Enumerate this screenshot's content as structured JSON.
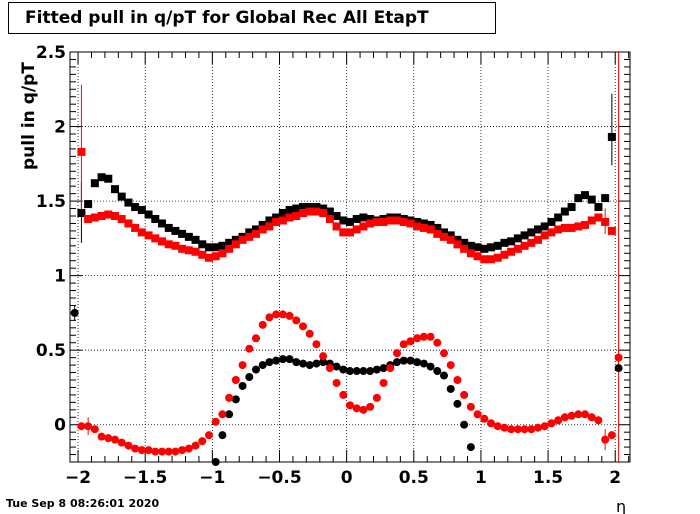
{
  "timestamp": "Tue Sep  8 08:26:01 2020",
  "chart_data": {
    "type": "scatter",
    "title": "Fitted pull in q/pT for Global Rec All EtapT",
    "xlabel": "η",
    "ylabel": "pull in q/pT",
    "xlim": [
      -2.06,
      2.11
    ],
    "ylim": [
      -0.25,
      2.5
    ],
    "grid": true,
    "x_ticks": [
      -2,
      -1.5,
      -1,
      -0.5,
      0,
      0.5,
      1,
      1.5,
      2
    ],
    "x_tick_labels": [
      "−2",
      "−1.5",
      "−1",
      "−0.5",
      "0",
      "0.5",
      "1",
      "1.5",
      "2"
    ],
    "y_ticks": [
      0,
      0.5,
      1,
      1.5,
      2,
      2.5
    ],
    "y_tick_labels": [
      "0",
      "0.5",
      "1",
      "1.5",
      "2",
      "2.5"
    ],
    "colors": {
      "black_series": "#000000",
      "red_series": "#ff0000"
    },
    "series": [
      {
        "marker": "square",
        "color": "#000000",
        "points": [
          [
            -1.975,
            1.42
          ],
          [
            -1.925,
            1.48
          ],
          [
            -1.875,
            1.62
          ],
          [
            -1.825,
            1.66
          ],
          [
            -1.775,
            1.65
          ],
          [
            -1.725,
            1.58
          ],
          [
            -1.675,
            1.53
          ],
          [
            -1.625,
            1.49
          ],
          [
            -1.575,
            1.46
          ],
          [
            -1.525,
            1.44
          ],
          [
            -1.475,
            1.41
          ],
          [
            -1.425,
            1.38
          ],
          [
            -1.375,
            1.35
          ],
          [
            -1.325,
            1.32
          ],
          [
            -1.275,
            1.3
          ],
          [
            -1.225,
            1.28
          ],
          [
            -1.175,
            1.26
          ],
          [
            -1.125,
            1.24
          ],
          [
            -1.075,
            1.21
          ],
          [
            -1.025,
            1.19
          ],
          [
            -0.975,
            1.19
          ],
          [
            -0.925,
            1.2
          ],
          [
            -0.875,
            1.22
          ],
          [
            -0.825,
            1.24
          ],
          [
            -0.775,
            1.26
          ],
          [
            -0.725,
            1.29
          ],
          [
            -0.675,
            1.31
          ],
          [
            -0.625,
            1.34
          ],
          [
            -0.575,
            1.37
          ],
          [
            -0.525,
            1.39
          ],
          [
            -0.475,
            1.42
          ],
          [
            -0.425,
            1.44
          ],
          [
            -0.375,
            1.45
          ],
          [
            -0.325,
            1.46
          ],
          [
            -0.275,
            1.46
          ],
          [
            -0.225,
            1.46
          ],
          [
            -0.175,
            1.45
          ],
          [
            -0.125,
            1.43
          ],
          [
            -0.075,
            1.4
          ],
          [
            -0.025,
            1.37
          ],
          [
            0.025,
            1.36
          ],
          [
            0.075,
            1.38
          ],
          [
            0.125,
            1.39
          ],
          [
            0.175,
            1.38
          ],
          [
            0.225,
            1.37
          ],
          [
            0.275,
            1.38
          ],
          [
            0.325,
            1.39
          ],
          [
            0.375,
            1.39
          ],
          [
            0.425,
            1.38
          ],
          [
            0.475,
            1.37
          ],
          [
            0.525,
            1.36
          ],
          [
            0.575,
            1.35
          ],
          [
            0.625,
            1.34
          ],
          [
            0.675,
            1.32
          ],
          [
            0.725,
            1.29
          ],
          [
            0.775,
            1.27
          ],
          [
            0.825,
            1.24
          ],
          [
            0.875,
            1.22
          ],
          [
            0.925,
            1.2
          ],
          [
            0.975,
            1.19
          ],
          [
            1.025,
            1.18
          ],
          [
            1.075,
            1.19
          ],
          [
            1.125,
            1.2
          ],
          [
            1.175,
            1.22
          ],
          [
            1.225,
            1.23
          ],
          [
            1.275,
            1.25
          ],
          [
            1.325,
            1.27
          ],
          [
            1.375,
            1.29
          ],
          [
            1.425,
            1.31
          ],
          [
            1.475,
            1.33
          ],
          [
            1.525,
            1.36
          ],
          [
            1.575,
            1.39
          ],
          [
            1.625,
            1.43
          ],
          [
            1.675,
            1.46
          ],
          [
            1.725,
            1.52
          ],
          [
            1.775,
            1.54
          ],
          [
            1.825,
            1.51
          ],
          [
            1.875,
            1.46
          ],
          [
            1.925,
            1.52
          ],
          [
            1.975,
            1.93
          ]
        ]
      },
      {
        "marker": "square",
        "color": "#ff0000",
        "points": [
          [
            -1.975,
            1.83
          ],
          [
            -1.925,
            1.38
          ],
          [
            -1.875,
            1.39
          ],
          [
            -1.825,
            1.4
          ],
          [
            -1.775,
            1.41
          ],
          [
            -1.725,
            1.4
          ],
          [
            -1.675,
            1.38
          ],
          [
            -1.625,
            1.35
          ],
          [
            -1.575,
            1.32
          ],
          [
            -1.525,
            1.29
          ],
          [
            -1.475,
            1.27
          ],
          [
            -1.425,
            1.25
          ],
          [
            -1.375,
            1.23
          ],
          [
            -1.325,
            1.21
          ],
          [
            -1.275,
            1.2
          ],
          [
            -1.225,
            1.18
          ],
          [
            -1.175,
            1.17
          ],
          [
            -1.125,
            1.16
          ],
          [
            -1.075,
            1.14
          ],
          [
            -1.025,
            1.12
          ],
          [
            -0.975,
            1.13
          ],
          [
            -0.925,
            1.15
          ],
          [
            -0.875,
            1.18
          ],
          [
            -0.825,
            1.21
          ],
          [
            -0.775,
            1.24
          ],
          [
            -0.725,
            1.26
          ],
          [
            -0.675,
            1.28
          ],
          [
            -0.625,
            1.31
          ],
          [
            -0.575,
            1.33
          ],
          [
            -0.525,
            1.36
          ],
          [
            -0.475,
            1.37
          ],
          [
            -0.425,
            1.39
          ],
          [
            -0.375,
            1.4
          ],
          [
            -0.325,
            1.42
          ],
          [
            -0.275,
            1.43
          ],
          [
            -0.225,
            1.43
          ],
          [
            -0.175,
            1.42
          ],
          [
            -0.125,
            1.38
          ],
          [
            -0.075,
            1.33
          ],
          [
            -0.025,
            1.29
          ],
          [
            0.025,
            1.29
          ],
          [
            0.075,
            1.31
          ],
          [
            0.125,
            1.33
          ],
          [
            0.175,
            1.35
          ],
          [
            0.225,
            1.36
          ],
          [
            0.275,
            1.36
          ],
          [
            0.325,
            1.37
          ],
          [
            0.375,
            1.37
          ],
          [
            0.425,
            1.36
          ],
          [
            0.475,
            1.35
          ],
          [
            0.525,
            1.33
          ],
          [
            0.575,
            1.32
          ],
          [
            0.625,
            1.31
          ],
          [
            0.675,
            1.28
          ],
          [
            0.725,
            1.26
          ],
          [
            0.775,
            1.24
          ],
          [
            0.825,
            1.21
          ],
          [
            0.875,
            1.18
          ],
          [
            0.925,
            1.15
          ],
          [
            0.975,
            1.13
          ],
          [
            1.025,
            1.11
          ],
          [
            1.075,
            1.11
          ],
          [
            1.125,
            1.12
          ],
          [
            1.175,
            1.14
          ],
          [
            1.225,
            1.16
          ],
          [
            1.275,
            1.18
          ],
          [
            1.325,
            1.2
          ],
          [
            1.375,
            1.22
          ],
          [
            1.425,
            1.24
          ],
          [
            1.475,
            1.27
          ],
          [
            1.525,
            1.29
          ],
          [
            1.575,
            1.31
          ],
          [
            1.625,
            1.32
          ],
          [
            1.675,
            1.32
          ],
          [
            1.725,
            1.33
          ],
          [
            1.775,
            1.34
          ],
          [
            1.825,
            1.37
          ],
          [
            1.875,
            1.39
          ],
          [
            1.925,
            1.36
          ],
          [
            1.975,
            1.3
          ]
        ]
      },
      {
        "marker": "circle",
        "color": "#000000",
        "points": [
          [
            -2.025,
            0.75
          ],
          [
            -0.975,
            -0.25
          ],
          [
            -0.925,
            -0.07
          ],
          [
            -0.875,
            0.07
          ],
          [
            -0.825,
            0.17
          ],
          [
            -0.775,
            0.26
          ],
          [
            -0.725,
            0.32
          ],
          [
            -0.675,
            0.37
          ],
          [
            -0.625,
            0.4
          ],
          [
            -0.575,
            0.42
          ],
          [
            -0.525,
            0.43
          ],
          [
            -0.475,
            0.44
          ],
          [
            -0.425,
            0.44
          ],
          [
            -0.375,
            0.42
          ],
          [
            -0.325,
            0.41
          ],
          [
            -0.275,
            0.4
          ],
          [
            -0.225,
            0.41
          ],
          [
            -0.175,
            0.42
          ],
          [
            -0.125,
            0.41
          ],
          [
            -0.075,
            0.39
          ],
          [
            -0.025,
            0.37
          ],
          [
            0.025,
            0.36
          ],
          [
            0.075,
            0.36
          ],
          [
            0.125,
            0.36
          ],
          [
            0.175,
            0.36
          ],
          [
            0.225,
            0.37
          ],
          [
            0.275,
            0.38
          ],
          [
            0.325,
            0.4
          ],
          [
            0.375,
            0.42
          ],
          [
            0.425,
            0.43
          ],
          [
            0.475,
            0.43
          ],
          [
            0.525,
            0.42
          ],
          [
            0.575,
            0.41
          ],
          [
            0.625,
            0.39
          ],
          [
            0.675,
            0.36
          ],
          [
            0.725,
            0.33
          ],
          [
            0.775,
            0.24
          ],
          [
            0.825,
            0.14
          ],
          [
            0.875,
            0.0
          ],
          [
            0.925,
            -0.15
          ],
          [
            2.025,
            0.38
          ]
        ]
      },
      {
        "marker": "circle",
        "color": "#ff0000",
        "points": [
          [
            -1.975,
            -0.01
          ],
          [
            -1.925,
            -0.01
          ],
          [
            -1.875,
            -0.03
          ],
          [
            -1.825,
            -0.08
          ],
          [
            -1.775,
            -0.09
          ],
          [
            -1.725,
            -0.1
          ],
          [
            -1.675,
            -0.12
          ],
          [
            -1.625,
            -0.14
          ],
          [
            -1.575,
            -0.16
          ],
          [
            -1.525,
            -0.17
          ],
          [
            -1.475,
            -0.17
          ],
          [
            -1.425,
            -0.18
          ],
          [
            -1.375,
            -0.18
          ],
          [
            -1.325,
            -0.18
          ],
          [
            -1.275,
            -0.18
          ],
          [
            -1.225,
            -0.17
          ],
          [
            -1.175,
            -0.16
          ],
          [
            -1.125,
            -0.14
          ],
          [
            -1.075,
            -0.11
          ],
          [
            -1.025,
            -0.07
          ],
          [
            -0.975,
            0.02
          ],
          [
            -0.925,
            0.07
          ],
          [
            -0.875,
            0.18
          ],
          [
            -0.825,
            0.3
          ],
          [
            -0.775,
            0.4
          ],
          [
            -0.725,
            0.51
          ],
          [
            -0.675,
            0.58
          ],
          [
            -0.625,
            0.67
          ],
          [
            -0.575,
            0.72
          ],
          [
            -0.525,
            0.74
          ],
          [
            -0.475,
            0.74
          ],
          [
            -0.425,
            0.73
          ],
          [
            -0.375,
            0.7
          ],
          [
            -0.325,
            0.66
          ],
          [
            -0.275,
            0.61
          ],
          [
            -0.225,
            0.54
          ],
          [
            -0.175,
            0.46
          ],
          [
            -0.125,
            0.38
          ],
          [
            -0.075,
            0.28
          ],
          [
            -0.025,
            0.2
          ],
          [
            0.025,
            0.13
          ],
          [
            0.075,
            0.11
          ],
          [
            0.125,
            0.1
          ],
          [
            0.175,
            0.12
          ],
          [
            0.225,
            0.18
          ],
          [
            0.275,
            0.28
          ],
          [
            0.325,
            0.38
          ],
          [
            0.375,
            0.48
          ],
          [
            0.425,
            0.54
          ],
          [
            0.475,
            0.56
          ],
          [
            0.525,
            0.58
          ],
          [
            0.575,
            0.59
          ],
          [
            0.625,
            0.59
          ],
          [
            0.675,
            0.55
          ],
          [
            0.725,
            0.48
          ],
          [
            0.775,
            0.4
          ],
          [
            0.825,
            0.3
          ],
          [
            0.875,
            0.2
          ],
          [
            0.925,
            0.12
          ],
          [
            0.975,
            0.07
          ],
          [
            1.025,
            0.04
          ],
          [
            1.075,
            0.01
          ],
          [
            1.125,
            -0.01
          ],
          [
            1.175,
            -0.02
          ],
          [
            1.225,
            -0.03
          ],
          [
            1.275,
            -0.03
          ],
          [
            1.325,
            -0.03
          ],
          [
            1.375,
            -0.03
          ],
          [
            1.425,
            -0.02
          ],
          [
            1.475,
            -0.01
          ],
          [
            1.525,
            0.01
          ],
          [
            1.575,
            0.03
          ],
          [
            1.625,
            0.05
          ],
          [
            1.675,
            0.06
          ],
          [
            1.725,
            0.07
          ],
          [
            1.775,
            0.07
          ],
          [
            1.825,
            0.05
          ],
          [
            1.875,
            0.03
          ],
          [
            1.925,
            -0.1
          ],
          [
            1.975,
            -0.07
          ],
          [
            2.025,
            0.45
          ]
        ]
      }
    ],
    "error_bars": [
      {
        "color": "#000000",
        "x": -1.975,
        "low": 1.22,
        "high": 1.63
      },
      {
        "color": "#ff0000",
        "x": -1.975,
        "low": 1.4,
        "high": 2.28
      },
      {
        "color": "#000000",
        "x": 1.975,
        "low": 1.74,
        "high": 2.22
      },
      {
        "color": "#ff0000",
        "x": 1.925,
        "low": 1.28,
        "high": 1.45
      },
      {
        "color": "#ff0000",
        "x": 2.025,
        "low": -0.25,
        "high": 2.5
      },
      {
        "color": "#ff0000",
        "x": -1.925,
        "low": -0.07,
        "high": 0.05
      },
      {
        "color": "#ff0000",
        "x": 1.925,
        "low": -0.17,
        "high": -0.03
      },
      {
        "color": "#000000",
        "x": -2.025,
        "low": 0.7,
        "high": 0.8
      }
    ]
  }
}
